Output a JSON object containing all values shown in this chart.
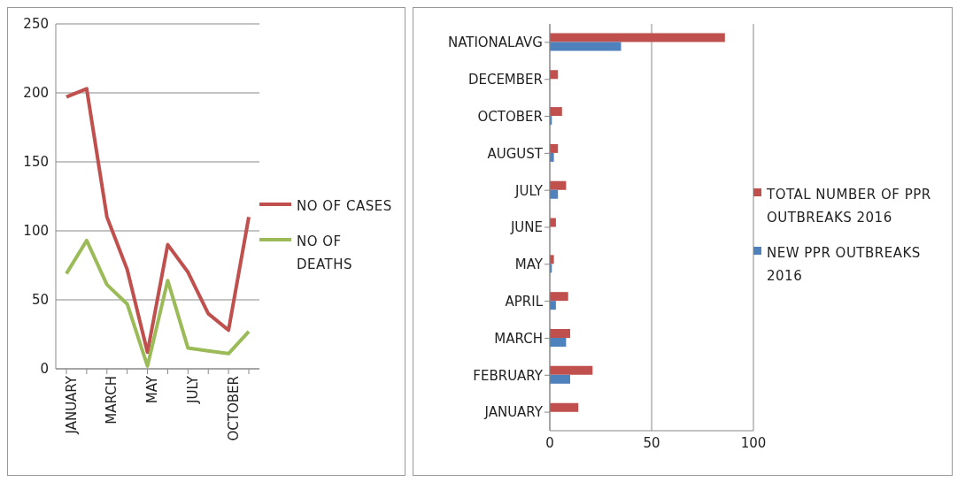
{
  "chart_data": [
    {
      "type": "line",
      "categories": [
        "JANUARY",
        null,
        "MARCH",
        null,
        "MAY",
        null,
        "JULY",
        null,
        "OCTOBER",
        null
      ],
      "series": [
        {
          "name": "NO OF CASES",
          "color": "#c0504d",
          "values": [
            197,
            203,
            110,
            72,
            12,
            90,
            70,
            40,
            28,
            110
          ]
        },
        {
          "name": "NO OF DEATHS",
          "color": "#9bbb59",
          "values": [
            69,
            93,
            61,
            47,
            2,
            64,
            15,
            13,
            11,
            27
          ]
        }
      ],
      "ylim": [
        0,
        250
      ],
      "yticks": [
        0,
        50,
        100,
        150,
        200,
        250
      ],
      "grid": "y",
      "legend": "right",
      "marker": "none",
      "line_style": "solid"
    },
    {
      "type": "bar",
      "orientation": "horizontal",
      "categories": [
        "NATIONALAVG",
        "DECEMBER",
        "OCTOBER",
        "AUGUST",
        "JULY",
        "JUNE",
        "MAY",
        "APRIL",
        "MARCH",
        "FEBRUARY",
        "JANUARY"
      ],
      "series": [
        {
          "name": "TOTAL NUMBER OF PPR OUTBREAKS 2016",
          "color": "#c0504d",
          "values": [
            86,
            4,
            6,
            4,
            8,
            3,
            2,
            9,
            10,
            21,
            14
          ]
        },
        {
          "name": "NEW PPR OUTBREAKS 2016",
          "color": "#4f81bd",
          "values": [
            35,
            0,
            1,
            2,
            4,
            0,
            1,
            3,
            8,
            10,
            0
          ]
        }
      ],
      "xlim": [
        0,
        100
      ],
      "xticks": [
        0,
        50,
        100
      ],
      "grid": "x",
      "legend": "right"
    }
  ]
}
